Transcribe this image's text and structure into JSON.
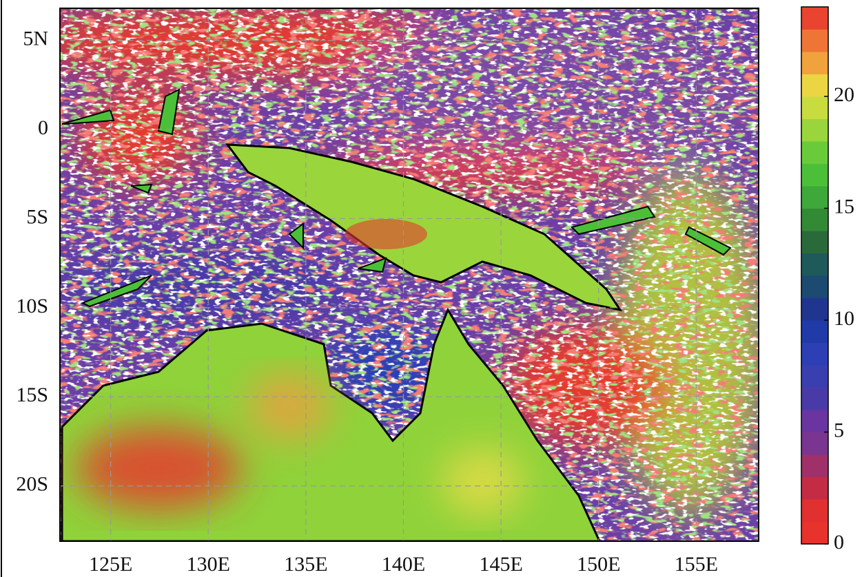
{
  "map": {
    "xlim": [
      122.4,
      158.2
    ],
    "ylim": [
      -23.1,
      6.8
    ],
    "xticks": [
      {
        "value": 125,
        "label": "125E"
      },
      {
        "value": 130,
        "label": "130E"
      },
      {
        "value": 135,
        "label": "135E"
      },
      {
        "value": 140,
        "label": "140E"
      },
      {
        "value": 145,
        "label": "145E"
      },
      {
        "value": 150,
        "label": "150E"
      },
      {
        "value": 155,
        "label": "155E"
      }
    ],
    "yticks": [
      {
        "value": 5,
        "label": "5N"
      },
      0,
      {
        "value": -5,
        "label": "5S"
      },
      {
        "value": -10,
        "label": "10S"
      },
      {
        "value": -15,
        "label": "15S"
      },
      {
        "value": -20,
        "label": "20S"
      }
    ],
    "grid": true
  },
  "colorbar": {
    "lim": [
      0,
      24
    ],
    "ticks": [
      0,
      5,
      10,
      15,
      20
    ],
    "colors": [
      "#e8322c",
      "#e0302f",
      "#c42c45",
      "#a0306a",
      "#7a3590",
      "#6a35a0",
      "#4a3aa8",
      "#3a3fb0",
      "#2c3fb5",
      "#203aa8",
      "#1f3590",
      "#1d4a70",
      "#1e5a5a",
      "#2a6a3a",
      "#338a35",
      "#3ea83a",
      "#4cbf38",
      "#6acb3a",
      "#9ad53c",
      "#c8dc40",
      "#ecd543",
      "#f0a23c",
      "#ee7536",
      "#e84430"
    ]
  }
}
